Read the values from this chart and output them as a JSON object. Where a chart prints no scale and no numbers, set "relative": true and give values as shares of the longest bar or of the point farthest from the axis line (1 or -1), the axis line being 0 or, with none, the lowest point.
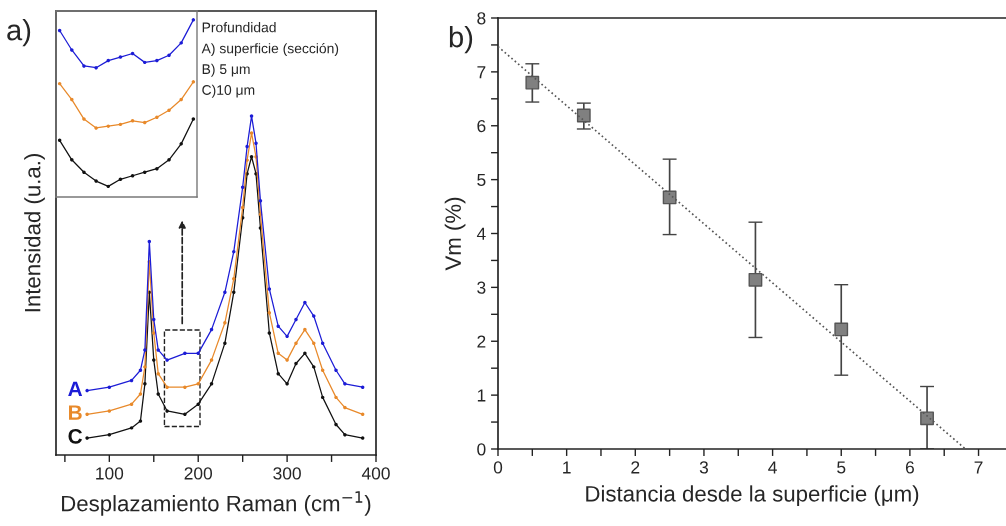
{
  "chart_data": [
    {
      "type": "line",
      "title": "a)",
      "xlabel": "Desplazamiento Raman (cm$^{−1}$)",
      "ylabel": "Intensidad (u.a.)",
      "relative": true,
      "tick_labels": "x",
      "grid": false,
      "legend": false,
      "marker": "circle",
      "line_style": "solid",
      "x": [
        75,
        100,
        125,
        135,
        140,
        145,
        150,
        155,
        165,
        185,
        200,
        215,
        230,
        240,
        250,
        255,
        260,
        265,
        270,
        280,
        290,
        300,
        310,
        320,
        330,
        340,
        355,
        365,
        385
      ],
      "xlim": [
        40,
        400
      ],
      "xticks": [
        {
          "value": 50,
          "label": null
        },
        100,
        {
          "value": 150,
          "label": null
        },
        200,
        {
          "value": 250,
          "label": null
        },
        300,
        {
          "value": 350,
          "label": null
        },
        400
      ],
      "annotations": [
        "Profundidad",
        "A) superficie (sección)",
        "B) 5 μm",
        "C)10 μm"
      ],
      "series": [
        {
          "name": "A",
          "color": "#1c1cd6",
          "values": [
            0.19,
            0.2,
            0.22,
            0.25,
            0.31,
            0.63,
            0.4,
            0.31,
            0.28,
            0.3,
            0.3,
            0.37,
            0.48,
            0.6,
            0.79,
            0.91,
            1.0,
            0.92,
            0.75,
            0.49,
            0.38,
            0.35,
            0.4,
            0.45,
            0.41,
            0.33,
            0.25,
            0.21,
            0.2
          ]
        },
        {
          "name": "B",
          "color": "#e8892a",
          "values": [
            0.12,
            0.13,
            0.15,
            0.18,
            0.26,
            0.57,
            0.36,
            0.24,
            0.2,
            0.2,
            0.21,
            0.28,
            0.39,
            0.52,
            0.73,
            0.87,
            0.95,
            0.88,
            0.71,
            0.42,
            0.3,
            0.28,
            0.33,
            0.37,
            0.33,
            0.25,
            0.17,
            0.14,
            0.12
          ]
        },
        {
          "name": "C",
          "color": "#111111",
          "values": [
            0.05,
            0.06,
            0.08,
            0.1,
            0.21,
            0.48,
            0.28,
            0.18,
            0.13,
            0.12,
            0.15,
            0.21,
            0.33,
            0.48,
            0.7,
            0.83,
            0.88,
            0.83,
            0.67,
            0.36,
            0.24,
            0.21,
            0.27,
            0.3,
            0.26,
            0.17,
            0.09,
            0.06,
            0.05
          ]
        }
      ]
    },
    {
      "type": "scatter",
      "title": "b)",
      "xlabel": "Distancia desde la superficie (μm)",
      "ylabel": "Vm (%)",
      "grid": false,
      "legend": false,
      "xlim": [
        0,
        7.4
      ],
      "xticks": [
        0,
        {
          "value": 0.5,
          "label": null
        },
        1,
        {
          "value": 1.5,
          "label": null
        },
        2,
        {
          "value": 2.5,
          "label": null
        },
        3,
        {
          "value": 3.5,
          "label": null
        },
        4,
        {
          "value": 4.5,
          "label": null
        },
        5,
        {
          "value": 5.5,
          "label": null
        },
        6,
        {
          "value": 6.5,
          "label": null
        },
        7
      ],
      "ylim": [
        0,
        8
      ],
      "yticks": [
        0,
        {
          "value": 0.5,
          "label": null
        },
        1,
        {
          "value": 1.5,
          "label": null
        },
        2,
        {
          "value": 2.5,
          "label": null
        },
        3,
        {
          "value": 3.5,
          "label": null
        },
        4,
        {
          "value": 4.5,
          "label": null
        },
        5,
        {
          "value": 5.5,
          "label": null
        },
        6,
        {
          "value": 6.5,
          "label": null
        },
        7,
        {
          "value": 7.5,
          "label": null
        },
        8
      ],
      "series": [
        {
          "type": "scatter",
          "color": "#808080",
          "marker": "square",
          "x": [
            0.5,
            1.25,
            2.5,
            3.75,
            5,
            6.25
          ],
          "values": [
            6.8,
            6.19,
            4.67,
            3.14,
            2.22,
            0.57
          ],
          "errors": [
            [
              6.44,
              7.15
            ],
            [
              5.94,
              6.42
            ],
            [
              3.98,
              5.38
            ],
            [
              2.07,
              4.21
            ],
            [
              1.37,
              3.05
            ],
            [
              0,
              1.16
            ]
          ]
        },
        {
          "type": "line",
          "color": "#555555",
          "line_style": "dotted",
          "marker": "none",
          "x": [
            0,
            6.81
          ],
          "values": [
            7.47,
            0
          ]
        }
      ]
    },
    {
      "type": "line",
      "relative": true,
      "tick_labels": false,
      "grid": false,
      "legend": false,
      "marker": "circle",
      "line_style": "solid",
      "categories": [
        null,
        null,
        null,
        null,
        null,
        null,
        null,
        null,
        null,
        null,
        null,
        null
      ],
      "series": [
        {
          "color": "#1c1cd6",
          "values": [
            0.94,
            0.83,
            0.74,
            0.73,
            0.77,
            0.79,
            0.81,
            0.76,
            0.77,
            0.8,
            0.87,
            1.0
          ]
        },
        {
          "color": "#e8892a",
          "values": [
            0.64,
            0.55,
            0.44,
            0.39,
            0.4,
            0.41,
            0.43,
            0.42,
            0.45,
            0.49,
            0.55,
            0.65
          ]
        },
        {
          "color": "#111111",
          "values": [
            0.32,
            0.21,
            0.14,
            0.09,
            0.06,
            0.1,
            0.12,
            0.14,
            0.16,
            0.21,
            0.3,
            0.44
          ]
        }
      ]
    }
  ]
}
